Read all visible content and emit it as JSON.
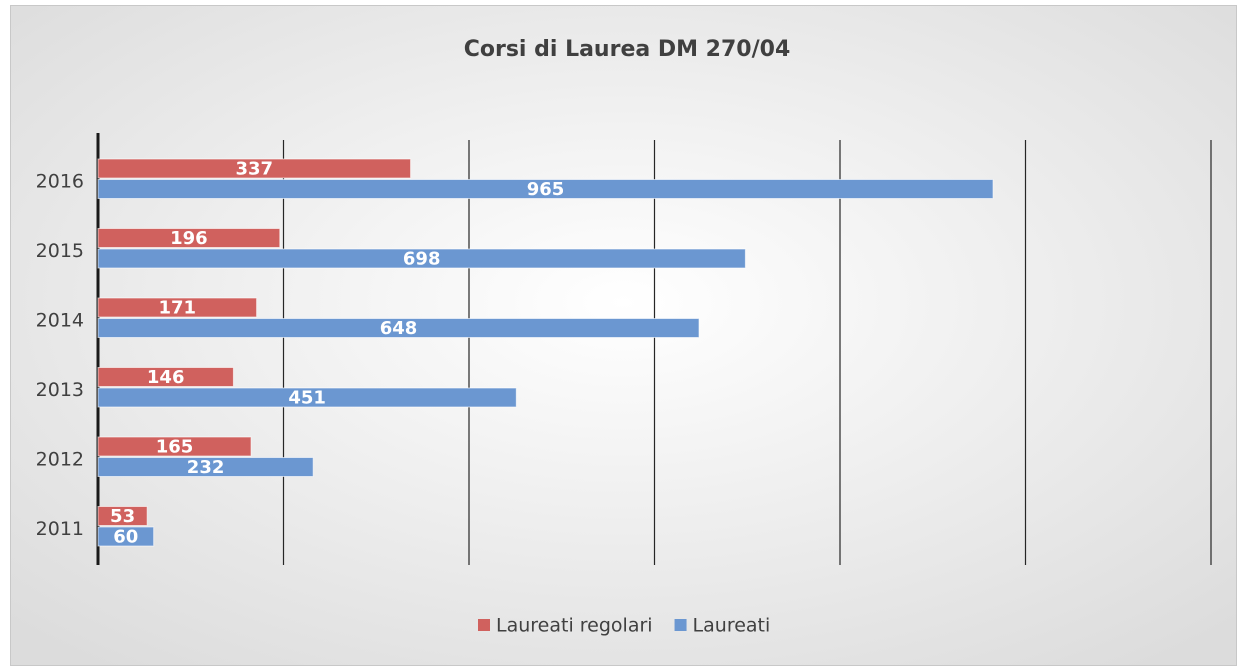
{
  "chart_data": {
    "type": "barh",
    "title": "Corsi di Laurea DM 270/04",
    "categories": [
      "2016",
      "2015",
      "2014",
      "2013",
      "2012",
      "2011"
    ],
    "series": [
      {
        "name": "Laureati regolari",
        "color": "#d0615e",
        "values": [
          337,
          196,
          171,
          146,
          165,
          53
        ]
      },
      {
        "name": "Laureati",
        "color": "#6b97d1",
        "values": [
          965,
          698,
          648,
          451,
          232,
          60
        ]
      }
    ],
    "xlim": [
      0,
      1200
    ],
    "xticks": [
      0,
      200,
      400,
      600,
      800,
      1000,
      1200
    ],
    "grid": true,
    "legend": "bottom"
  }
}
